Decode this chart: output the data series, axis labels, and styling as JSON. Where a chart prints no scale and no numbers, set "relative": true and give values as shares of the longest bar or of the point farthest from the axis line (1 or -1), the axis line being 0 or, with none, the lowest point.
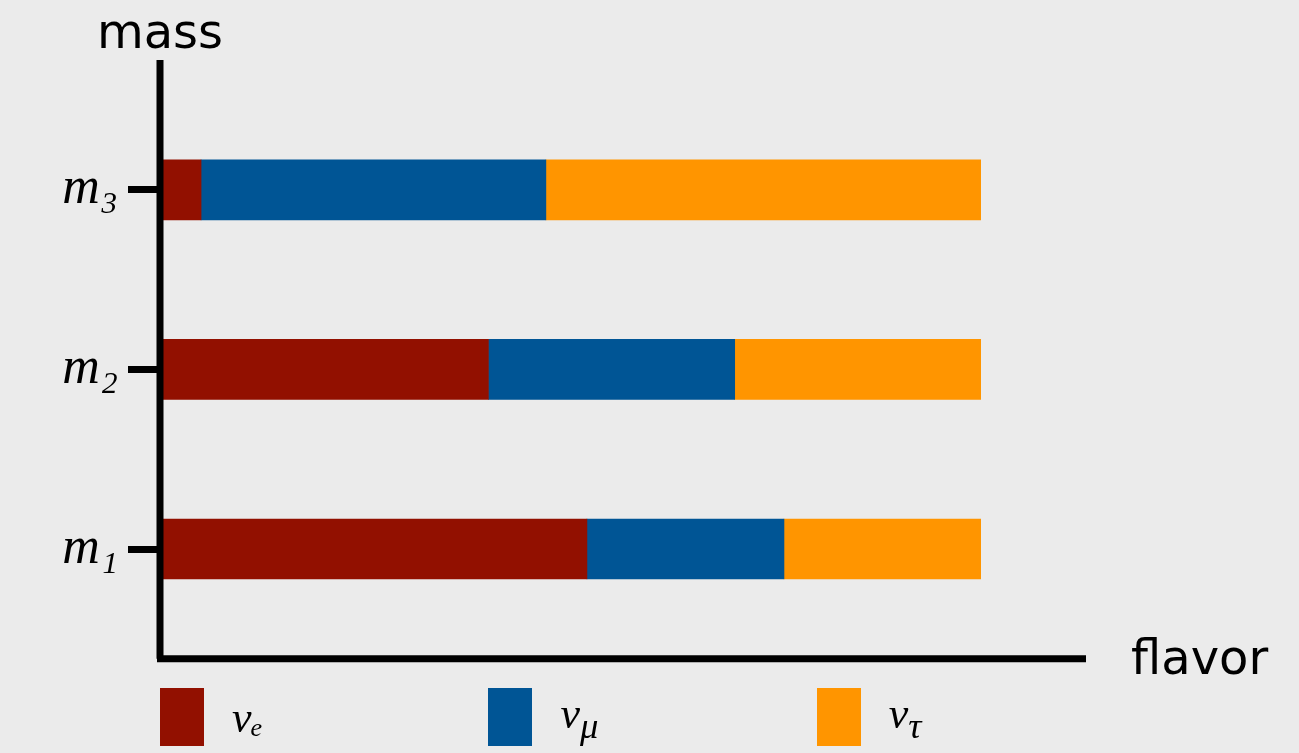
{
  "chart_data": {
    "type": "bar",
    "orientation": "horizontal",
    "stacked": true,
    "relative": true,
    "xlabel": "flavor",
    "ylabel": "mass",
    "categories": [
      "m₃",
      "m₂",
      "m₁"
    ],
    "series": [
      {
        "name": "νₑ",
        "color": "#921000",
        "values": [
          0.05,
          0.4,
          0.52
        ]
      },
      {
        "name": "ν$_{μ}$",
        "color": "#005595",
        "values": [
          0.42,
          0.3,
          0.24
        ]
      },
      {
        "name": "ν$_{τ}$",
        "color": "#ff9500",
        "values": [
          0.53,
          0.3,
          0.24
        ]
      }
    ],
    "legend": "bottom"
  }
}
